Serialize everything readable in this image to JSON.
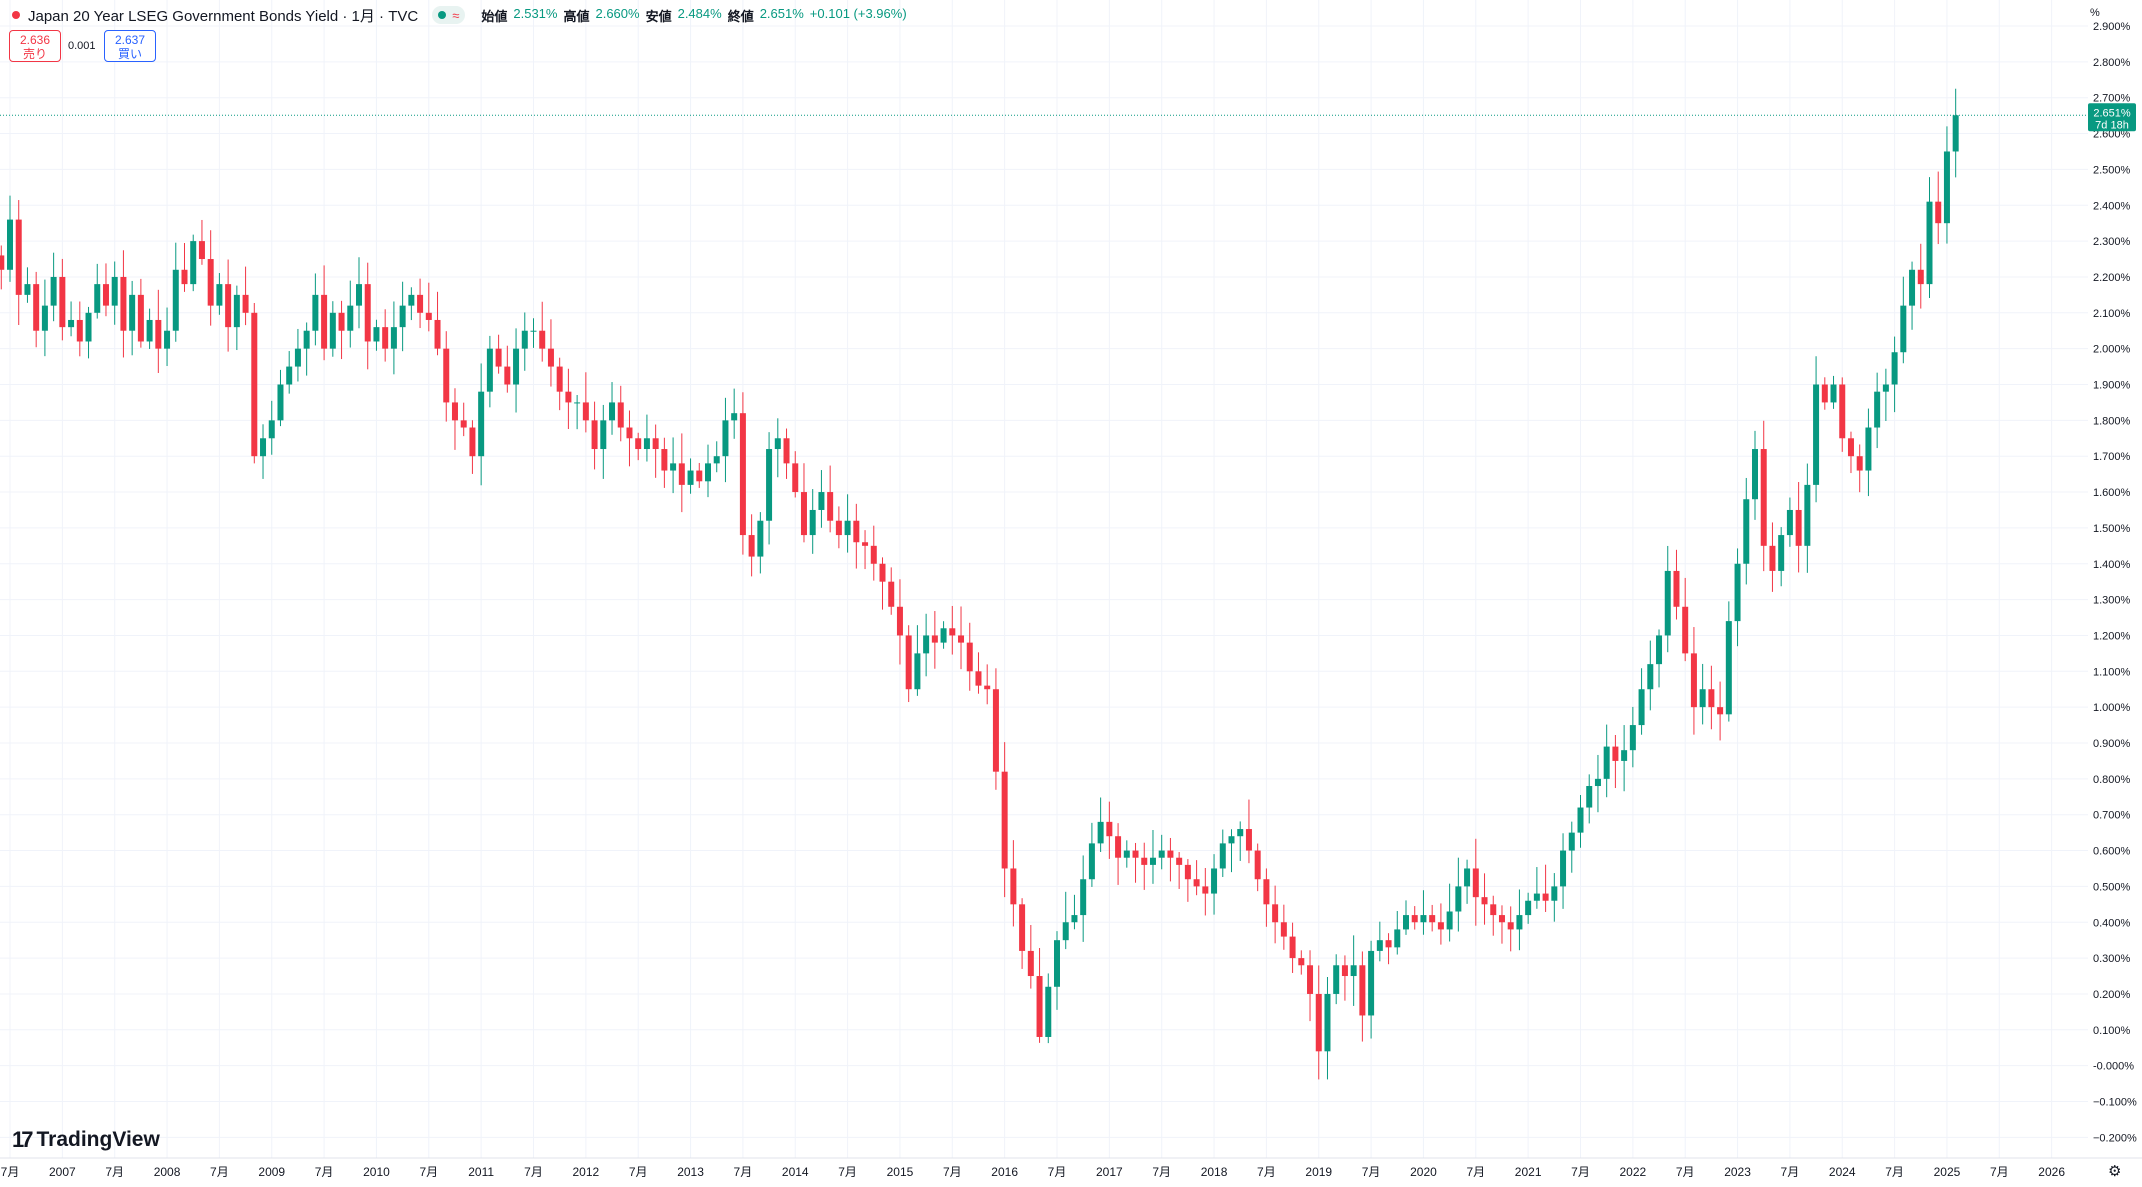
{
  "header": {
    "title": "Japan 20 Year LSEG Government Bonds Yield · 1月 · TVC",
    "badge_symbol": "≈",
    "ohlc": [
      {
        "label": "始値",
        "value": "2.531%"
      },
      {
        "label": "高値",
        "value": "2.660%"
      },
      {
        "label": "安値",
        "value": "2.484%"
      },
      {
        "label": "終値",
        "value": "2.651%"
      }
    ],
    "change": "+0.101 (+3.96%)"
  },
  "trade": {
    "sell_price": "2.636",
    "sell_label": "売り",
    "spread": "0.001",
    "buy_price": "2.637",
    "buy_label": "買い"
  },
  "logo": {
    "mark": "17",
    "text": "TradingView"
  },
  "settings_icon": "gear-icon",
  "colors": {
    "up": "#089981",
    "down": "#f23645",
    "grid": "#f0f3fa",
    "price_line": "#089981"
  },
  "chart_data": {
    "type": "candlestick",
    "interval": "monthly",
    "unit_label": "%",
    "last_price": {
      "label": "2.651%",
      "countdown": "7d 18h",
      "value": 2.651
    },
    "ylim": [
      -0.23,
      2.93
    ],
    "y_ticks": [
      2.9,
      2.8,
      2.7,
      2.6,
      2.5,
      2.4,
      2.3,
      2.2,
      2.1,
      2.0,
      1.9,
      1.8,
      1.7,
      1.6,
      1.5,
      1.4,
      1.3,
      1.2,
      1.1,
      1.0,
      0.9,
      0.8,
      0.7,
      0.6,
      0.5,
      0.4,
      0.3,
      0.2,
      0.1,
      0.0,
      -0.1,
      -0.2
    ],
    "y_tick_labels": [
      "2.900%",
      "2.800%",
      "2.700%",
      "2.600%",
      "2.500%",
      "2.400%",
      "2.300%",
      "2.200%",
      "2.100%",
      "2.000%",
      "1.900%",
      "1.800%",
      "1.700%",
      "1.600%",
      "1.500%",
      "1.400%",
      "1.300%",
      "1.200%",
      "1.100%",
      "1.000%",
      "0.900%",
      "0.800%",
      "0.700%",
      "0.600%",
      "0.500%",
      "0.400%",
      "0.300%",
      "0.200%",
      "0.100%",
      "-0.000%",
      "−0.100%",
      "−0.200%"
    ],
    "x_ticks": [
      {
        "t": 2006.5,
        "label": "7月"
      },
      {
        "t": 2007.0,
        "label": "2007"
      },
      {
        "t": 2007.5,
        "label": "7月"
      },
      {
        "t": 2008.0,
        "label": "2008"
      },
      {
        "t": 2008.5,
        "label": "7月"
      },
      {
        "t": 2009.0,
        "label": "2009"
      },
      {
        "t": 2009.5,
        "label": "7月"
      },
      {
        "t": 2010.0,
        "label": "2010"
      },
      {
        "t": 2010.5,
        "label": "7月"
      },
      {
        "t": 2011.0,
        "label": "2011"
      },
      {
        "t": 2011.5,
        "label": "7月"
      },
      {
        "t": 2012.0,
        "label": "2012"
      },
      {
        "t": 2012.5,
        "label": "7月"
      },
      {
        "t": 2013.0,
        "label": "2013"
      },
      {
        "t": 2013.5,
        "label": "7月"
      },
      {
        "t": 2014.0,
        "label": "2014"
      },
      {
        "t": 2014.5,
        "label": "7月"
      },
      {
        "t": 2015.0,
        "label": "2015"
      },
      {
        "t": 2015.5,
        "label": "7月"
      },
      {
        "t": 2016.0,
        "label": "2016"
      },
      {
        "t": 2016.5,
        "label": "7月"
      },
      {
        "t": 2017.0,
        "label": "2017"
      },
      {
        "t": 2017.5,
        "label": "7月"
      },
      {
        "t": 2018.0,
        "label": "2018"
      },
      {
        "t": 2018.5,
        "label": "7月"
      },
      {
        "t": 2019.0,
        "label": "2019"
      },
      {
        "t": 2019.5,
        "label": "7月"
      },
      {
        "t": 2020.0,
        "label": "2020"
      },
      {
        "t": 2020.5,
        "label": "7月"
      },
      {
        "t": 2021.0,
        "label": "2021"
      },
      {
        "t": 2021.5,
        "label": "7月"
      },
      {
        "t": 2022.0,
        "label": "2022"
      },
      {
        "t": 2022.5,
        "label": "7月"
      },
      {
        "t": 2023.0,
        "label": "2023"
      },
      {
        "t": 2023.5,
        "label": "7月"
      },
      {
        "t": 2024.0,
        "label": "2024"
      },
      {
        "t": 2024.5,
        "label": "7月"
      },
      {
        "t": 2025.0,
        "label": "2025"
      },
      {
        "t": 2025.5,
        "label": "7月"
      },
      {
        "t": 2026.0,
        "label": "2026"
      }
    ],
    "start": "2006-06",
    "close_series": [
      2.22,
      2.36,
      2.15,
      2.18,
      2.05,
      2.12,
      2.2,
      2.06,
      2.08,
      2.02,
      2.1,
      2.18,
      2.12,
      2.2,
      2.05,
      2.15,
      2.02,
      2.08,
      2.0,
      2.05,
      2.22,
      2.18,
      2.3,
      2.25,
      2.12,
      2.18,
      2.06,
      2.15,
      2.1,
      1.7,
      1.75,
      1.8,
      1.9,
      1.95,
      2.0,
      2.05,
      2.15,
      2.0,
      2.1,
      2.05,
      2.12,
      2.18,
      2.02,
      2.06,
      2.0,
      2.06,
      2.12,
      2.15,
      2.1,
      2.08,
      2.0,
      1.85,
      1.8,
      1.78,
      1.7,
      1.88,
      2.0,
      1.95,
      1.9,
      2.0,
      2.05,
      2.05,
      2.0,
      1.95,
      1.88,
      1.85,
      1.85,
      1.8,
      1.72,
      1.8,
      1.85,
      1.78,
      1.75,
      1.72,
      1.75,
      1.72,
      1.66,
      1.68,
      1.62,
      1.66,
      1.63,
      1.68,
      1.7,
      1.8,
      1.82,
      1.48,
      1.42,
      1.52,
      1.72,
      1.75,
      1.68,
      1.6,
      1.48,
      1.55,
      1.6,
      1.52,
      1.48,
      1.52,
      1.46,
      1.45,
      1.4,
      1.35,
      1.28,
      1.2,
      1.05,
      1.15,
      1.2,
      1.18,
      1.22,
      1.2,
      1.18,
      1.1,
      1.06,
      1.05,
      0.82,
      0.55,
      0.45,
      0.32,
      0.25,
      0.08,
      0.22,
      0.35,
      0.4,
      0.42,
      0.52,
      0.62,
      0.68,
      0.64,
      0.58,
      0.6,
      0.58,
      0.56,
      0.58,
      0.6,
      0.58,
      0.56,
      0.52,
      0.5,
      0.48,
      0.55,
      0.62,
      0.64,
      0.66,
      0.6,
      0.52,
      0.45,
      0.4,
      0.36,
      0.3,
      0.28,
      0.2,
      0.04,
      0.2,
      0.28,
      0.25,
      0.28,
      0.14,
      0.32,
      0.35,
      0.33,
      0.38,
      0.42,
      0.4,
      0.42,
      0.4,
      0.38,
      0.43,
      0.5,
      0.55,
      0.47,
      0.45,
      0.42,
      0.4,
      0.38,
      0.42,
      0.46,
      0.48,
      0.46,
      0.5,
      0.6,
      0.65,
      0.72,
      0.78,
      0.8,
      0.89,
      0.85,
      0.88,
      0.95,
      1.05,
      1.12,
      1.2,
      1.38,
      1.28,
      1.15,
      1.0,
      1.05,
      1.0,
      0.98,
      1.24,
      1.4,
      1.58,
      1.72,
      1.45,
      1.38,
      1.48,
      1.55,
      1.45,
      1.62,
      1.9,
      1.85,
      1.9,
      1.75,
      1.7,
      1.66,
      1.78,
      1.88,
      1.9,
      1.99,
      2.12,
      2.22,
      2.18,
      2.41,
      2.35,
      2.55,
      2.651
    ]
  }
}
